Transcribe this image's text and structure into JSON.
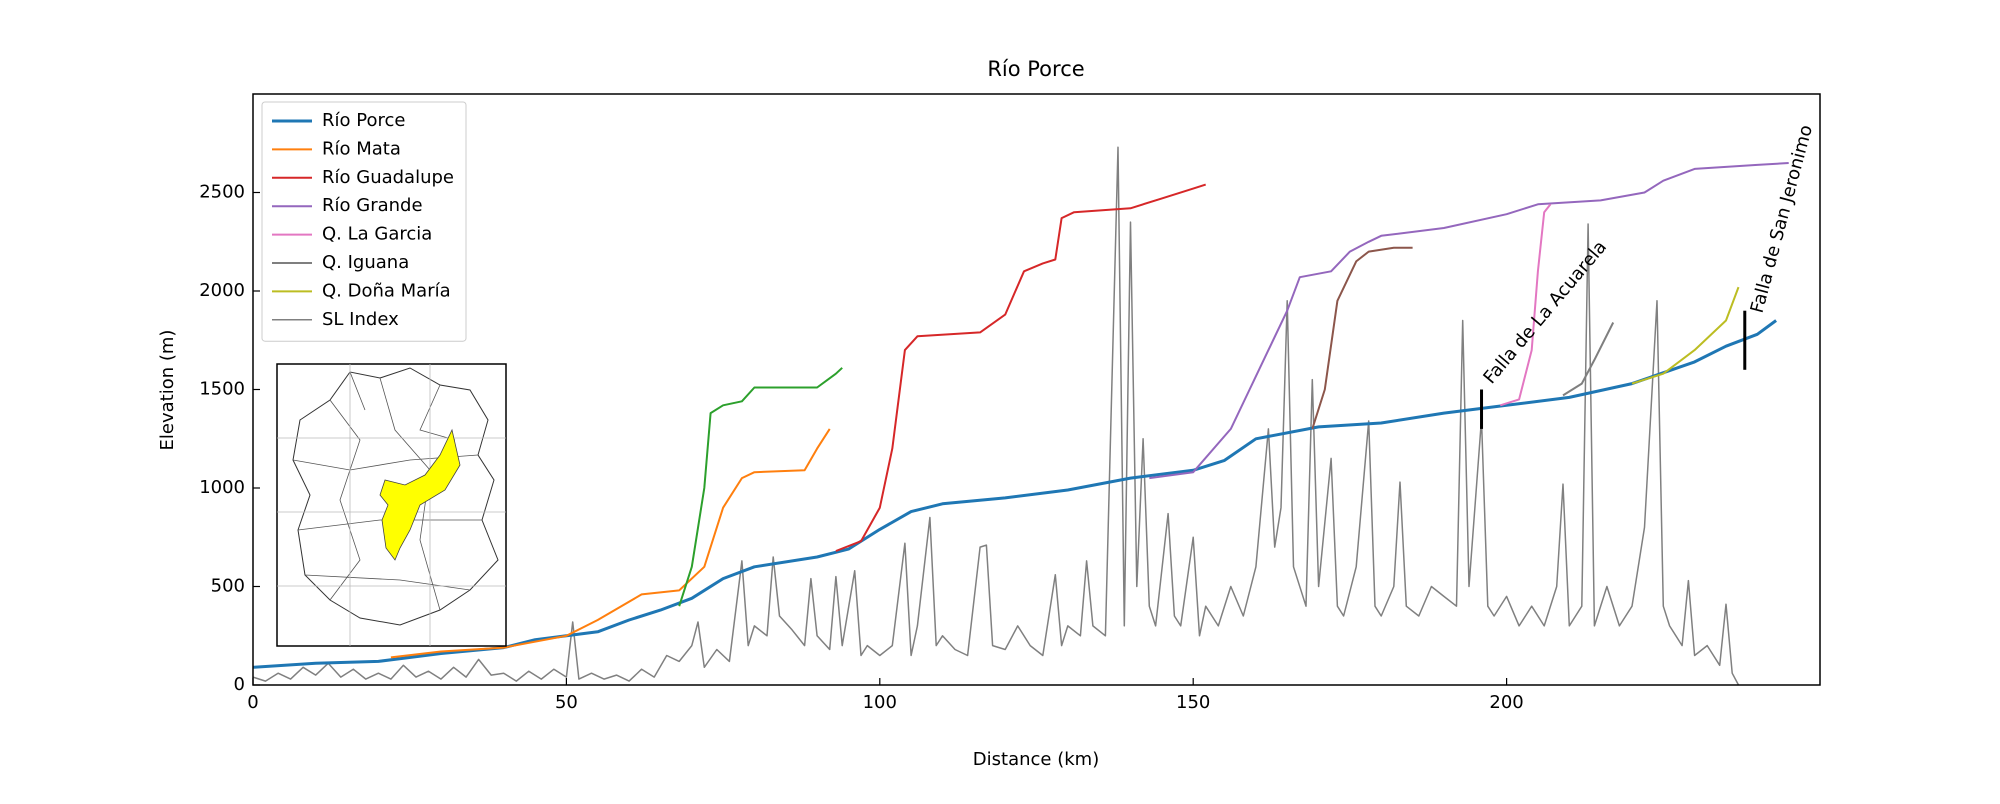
{
  "chart_data": {
    "type": "line",
    "title": "Río Porce",
    "xlabel": "Distance (km)",
    "ylabel": "Elevation (m)",
    "xlim": [
      0,
      250
    ],
    "ylim": [
      0,
      3000
    ],
    "xticks": [
      0,
      50,
      100,
      150,
      200
    ],
    "yticks": [
      0,
      500,
      1000,
      1500,
      2000,
      2500
    ],
    "grid": false,
    "legend": "upper left",
    "series": [
      {
        "name": "Río Porce",
        "color": "#1f77b4",
        "width": 3,
        "x": [
          0,
          10,
          20,
          30,
          40,
          45,
          55,
          60,
          65,
          70,
          75,
          80,
          90,
          95,
          100,
          105,
          110,
          120,
          130,
          140,
          150,
          155,
          160,
          170,
          180,
          190,
          200,
          210,
          220,
          230,
          235,
          240,
          243
        ],
        "values": [
          90,
          110,
          120,
          160,
          190,
          230,
          270,
          330,
          380,
          440,
          540,
          600,
          650,
          690,
          790,
          880,
          920,
          950,
          990,
          1050,
          1090,
          1140,
          1250,
          1310,
          1330,
          1380,
          1420,
          1460,
          1530,
          1640,
          1720,
          1780,
          1850
        ]
      },
      {
        "name": "Río Mata",
        "color": "#ff7f0e",
        "width": 2,
        "x": [
          22,
          30,
          40,
          50,
          55,
          62,
          68,
          72,
          75,
          78,
          80,
          88,
          90,
          92
        ],
        "values": [
          140,
          170,
          190,
          250,
          330,
          460,
          480,
          600,
          900,
          1050,
          1080,
          1090,
          1200,
          1300
        ]
      },
      {
        "color": "#2ca02c",
        "width": 2,
        "x": [
          68,
          70,
          72,
          73,
          75,
          78,
          80,
          90,
          93,
          94
        ],
        "values": [
          400,
          600,
          1000,
          1380,
          1420,
          1440,
          1510,
          1510,
          1580,
          1610
        ]
      },
      {
        "name": "Río Guadalupe",
        "color": "#d62728",
        "width": 2,
        "x": [
          93,
          97,
          100,
          102,
          104,
          106,
          116,
          120,
          123,
          126,
          128,
          129,
          131,
          140,
          145,
          150,
          152
        ],
        "values": [
          680,
          730,
          900,
          1200,
          1700,
          1770,
          1790,
          1880,
          2100,
          2140,
          2160,
          2370,
          2400,
          2420,
          2470,
          2520,
          2540
        ]
      },
      {
        "name": "Río Grande",
        "color": "#9467bd",
        "width": 2,
        "x": [
          143,
          150,
          156,
          159,
          162,
          165,
          167,
          172,
          175,
          178,
          180,
          190,
          200,
          205,
          215,
          222,
          225,
          230,
          240,
          245
        ],
        "values": [
          1050,
          1080,
          1300,
          1500,
          1700,
          1900,
          2070,
          2100,
          2200,
          2250,
          2280,
          2320,
          2390,
          2440,
          2460,
          2500,
          2560,
          2620,
          2640,
          2650
        ]
      },
      {
        "color": "#8c564b",
        "width": 2,
        "x": [
          169,
          171,
          173,
          176,
          178,
          182,
          185
        ],
        "values": [
          1300,
          1500,
          1950,
          2150,
          2200,
          2220,
          2220
        ]
      },
      {
        "name": "Q. La Garcia",
        "color": "#e377c2",
        "width": 2,
        "x": [
          199,
          202,
          204,
          205,
          206,
          207
        ],
        "values": [
          1420,
          1450,
          1700,
          2100,
          2400,
          2440
        ]
      },
      {
        "name": "Q. Iguana",
        "color": "#7f7f7f",
        "width": 2,
        "x": [
          209,
          212,
          214,
          217
        ],
        "values": [
          1470,
          1530,
          1650,
          1840
        ]
      },
      {
        "name": "Q. Doña María",
        "color": "#bcbd22",
        "width": 2,
        "x": [
          220,
          225,
          230,
          235,
          237
        ],
        "values": [
          1530,
          1580,
          1700,
          1850,
          2020
        ]
      },
      {
        "name": "SL Index",
        "color": "#808080",
        "width": 1.5,
        "x": [
          0,
          2,
          4,
          6,
          8,
          10,
          12,
          14,
          16,
          18,
          20,
          22,
          24,
          26,
          28,
          30,
          32,
          34,
          36,
          38,
          40,
          42,
          44,
          46,
          48,
          50,
          51,
          52,
          54,
          56,
          58,
          60,
          62,
          64,
          66,
          68,
          70,
          71,
          72,
          74,
          76,
          78,
          79,
          80,
          82,
          83,
          84,
          86,
          88,
          89,
          90,
          92,
          93,
          94,
          96,
          97,
          98,
          100,
          102,
          104,
          105,
          106,
          108,
          109,
          110,
          112,
          114,
          116,
          117,
          118,
          120,
          122,
          124,
          126,
          128,
          129,
          130,
          132,
          133,
          134,
          136,
          138,
          139,
          140,
          141,
          142,
          143,
          144,
          146,
          147,
          148,
          150,
          151,
          152,
          154,
          156,
          158,
          160,
          162,
          163,
          164,
          165,
          166,
          168,
          169,
          170,
          172,
          173,
          174,
          176,
          178,
          179,
          180,
          182,
          183,
          184,
          186,
          188,
          190,
          192,
          193,
          194,
          196,
          197,
          198,
          200,
          202,
          204,
          206,
          208,
          209,
          210,
          212,
          213,
          214,
          216,
          218,
          220,
          222,
          224,
          225,
          226,
          228,
          229,
          230,
          232,
          234,
          235,
          236,
          237
        ],
        "values": [
          40,
          20,
          60,
          30,
          90,
          50,
          110,
          40,
          80,
          30,
          60,
          30,
          100,
          40,
          70,
          30,
          90,
          40,
          130,
          50,
          60,
          20,
          70,
          30,
          80,
          40,
          320,
          30,
          60,
          30,
          50,
          20,
          80,
          40,
          150,
          120,
          200,
          320,
          90,
          180,
          120,
          630,
          200,
          300,
          250,
          650,
          350,
          280,
          200,
          540,
          250,
          180,
          550,
          200,
          580,
          150,
          200,
          150,
          200,
          720,
          150,
          300,
          850,
          200,
          250,
          180,
          150,
          700,
          710,
          200,
          180,
          300,
          200,
          150,
          560,
          200,
          300,
          250,
          630,
          300,
          250,
          2730,
          300,
          2350,
          500,
          1250,
          400,
          300,
          870,
          350,
          300,
          750,
          250,
          400,
          300,
          500,
          350,
          600,
          1300,
          700,
          900,
          1950,
          600,
          400,
          1550,
          500,
          1150,
          400,
          350,
          600,
          1340,
          400,
          350,
          500,
          1030,
          400,
          350,
          500,
          450,
          400,
          1850,
          500,
          1350,
          400,
          350,
          450,
          300,
          400,
          300,
          500,
          1020,
          300,
          400,
          2340,
          300,
          500,
          300,
          400,
          800,
          1950,
          400,
          300,
          200,
          530,
          150,
          200,
          100,
          410,
          60,
          0
        ]
      }
    ],
    "annotations": [
      {
        "text": "Falla de La Acuarela",
        "x": 196,
        "y": [
          1300,
          1500
        ],
        "text_x": 197,
        "text_y": 1540,
        "rotation": -50
      },
      {
        "text": "Falla de San Jeronimo",
        "x": 238,
        "y": [
          1600,
          1900
        ],
        "text_x": 240,
        "text_y": 1890,
        "rotation": -75
      }
    ]
  }
}
